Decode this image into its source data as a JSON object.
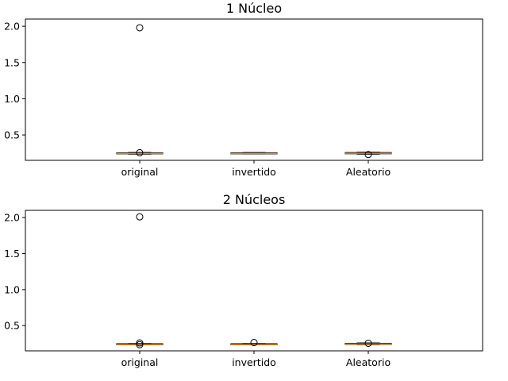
{
  "chart_data": [
    {
      "type": "box",
      "title": "1 Núcleo",
      "categories": [
        "original",
        "invertido",
        "Aleatorio"
      ],
      "yticks": [
        "0.5",
        "1.0",
        "1.5",
        "2.0"
      ],
      "ylim": [
        0.15,
        2.1
      ],
      "boxes": [
        {
          "q1": 0.24,
          "median": 0.245,
          "q3": 0.255,
          "whisker_low": 0.235,
          "whisker_high": 0.26,
          "outliers": [
            1.98,
            0.255
          ]
        },
        {
          "q1": 0.24,
          "median": 0.245,
          "q3": 0.255,
          "whisker_low": 0.238,
          "whisker_high": 0.258,
          "outliers": []
        },
        {
          "q1": 0.24,
          "median": 0.247,
          "q3": 0.258,
          "whisker_low": 0.235,
          "whisker_high": 0.262,
          "outliers": [
            0.23
          ]
        }
      ],
      "colors": {
        "box": "#000000",
        "median": "#e08a2c",
        "outlier": "#000000"
      }
    },
    {
      "type": "box",
      "title": "2 Núcleos",
      "categories": [
        "original",
        "invertido",
        "Aleatorio"
      ],
      "yticks": [
        "0.5",
        "1.0",
        "1.5",
        "2.0"
      ],
      "ylim": [
        0.15,
        2.1
      ],
      "boxes": [
        {
          "q1": 0.235,
          "median": 0.24,
          "q3": 0.25,
          "whisker_low": 0.232,
          "whisker_high": 0.252,
          "outliers": [
            2.01,
            0.26,
            0.235
          ]
        },
        {
          "q1": 0.235,
          "median": 0.24,
          "q3": 0.25,
          "whisker_low": 0.232,
          "whisker_high": 0.252,
          "outliers": [
            0.265
          ]
        },
        {
          "q1": 0.24,
          "median": 0.245,
          "q3": 0.255,
          "whisker_low": 0.236,
          "whisker_high": 0.26,
          "outliers": [
            0.255
          ]
        }
      ],
      "colors": {
        "box": "#000000",
        "median": "#e08a2c",
        "outlier": "#000000"
      }
    }
  ]
}
